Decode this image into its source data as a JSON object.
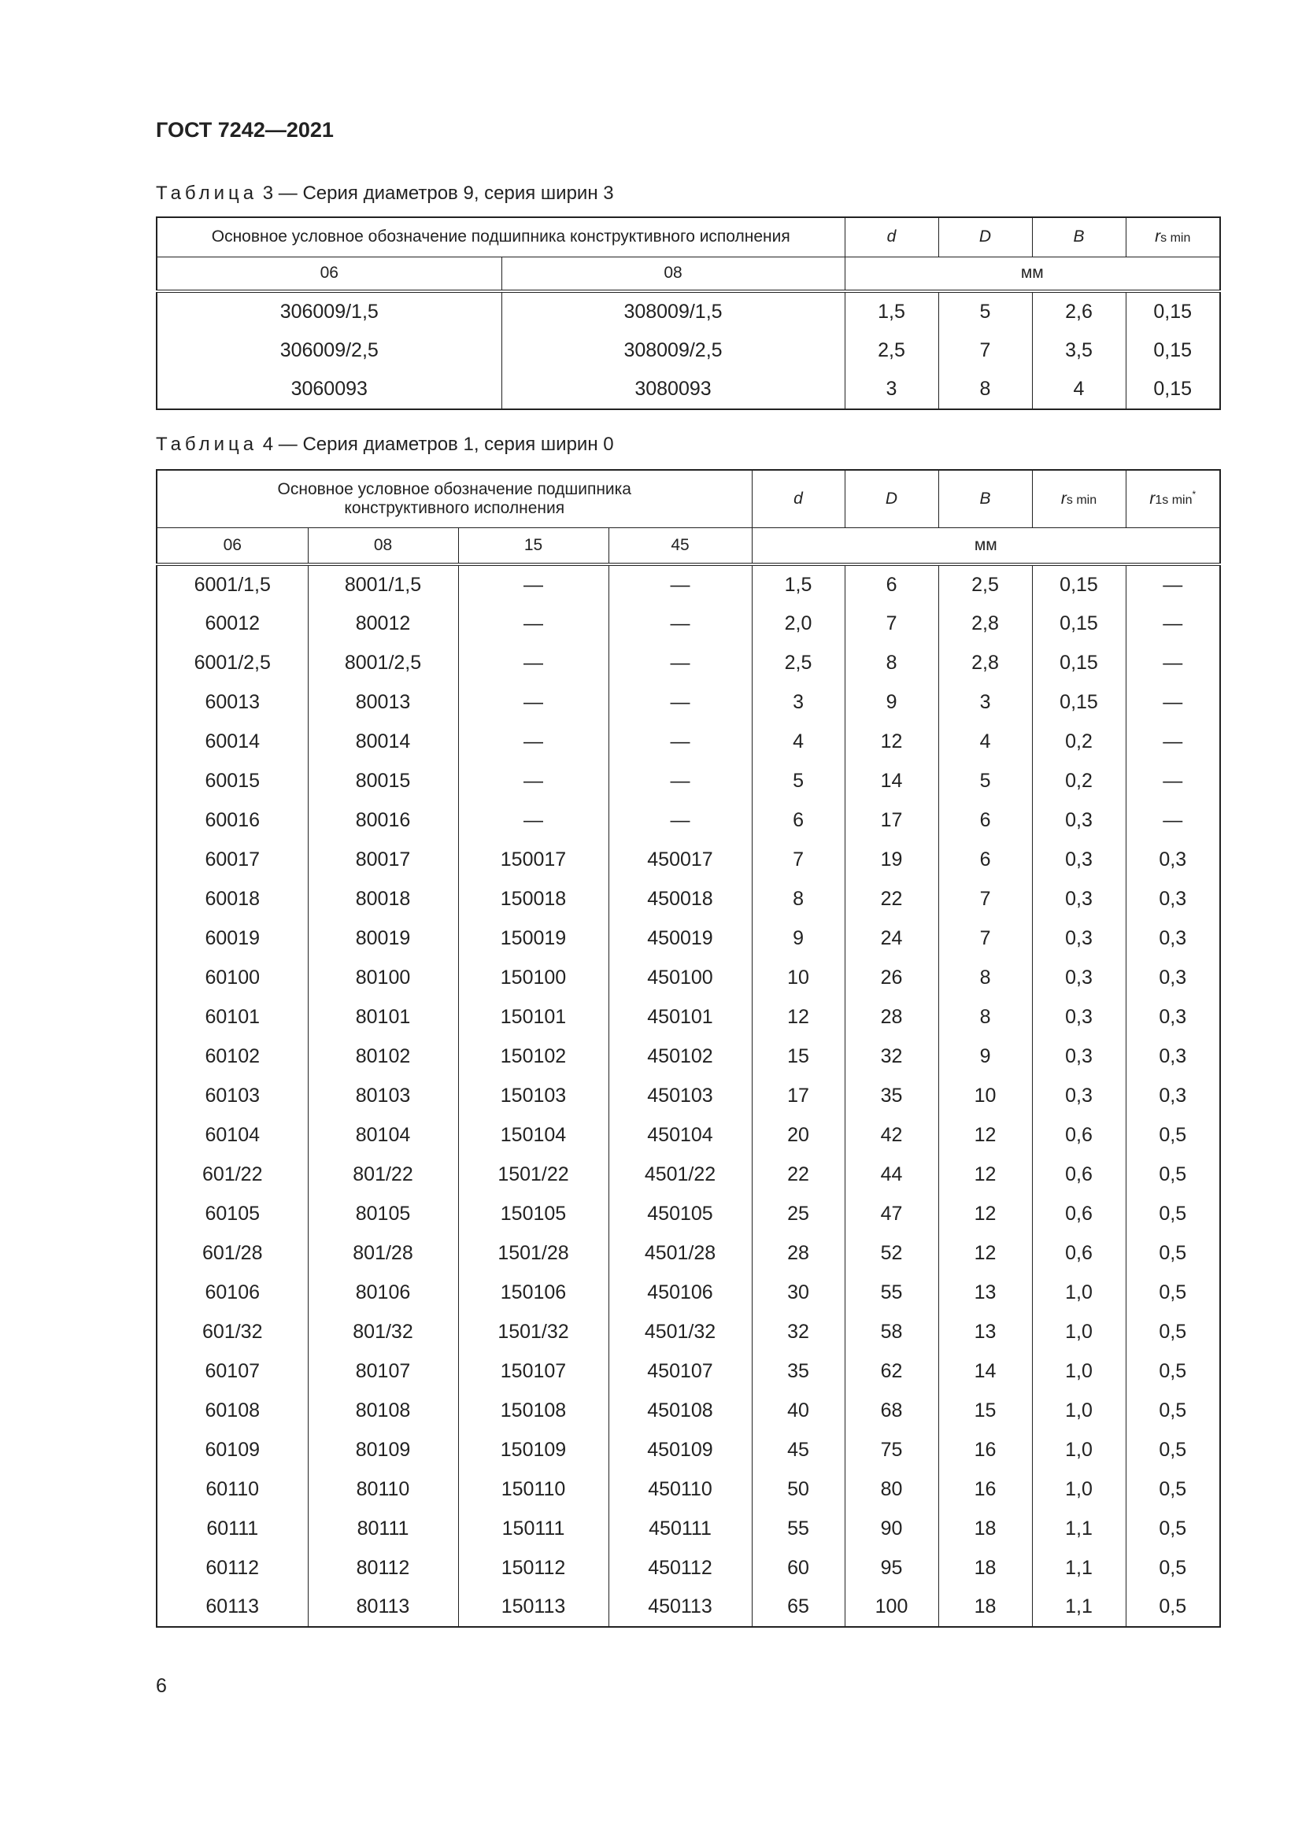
{
  "header": {
    "doc_title": "ГОСТ 7242—2021"
  },
  "table3": {
    "caption_prefix": "Таблица",
    "caption": "3 — Серия диаметров 9, серия ширин 3",
    "group_header": "Основное условное обозначение подшипника конструктивного исполнения",
    "dim_headers": [
      "d",
      "D",
      "B"
    ],
    "r_label": "r",
    "r_sub": "s min",
    "series": [
      "06",
      "08"
    ],
    "unit": "мм",
    "rows": [
      [
        "306009/1,5",
        "308009/1,5",
        "1,5",
        "5",
        "2,6",
        "0,15"
      ],
      [
        "306009/2,5",
        "308009/2,5",
        "2,5",
        "7",
        "3,5",
        "0,15"
      ],
      [
        "3060093",
        "3080093",
        "3",
        "8",
        "4",
        "0,15"
      ]
    ]
  },
  "table4": {
    "caption_prefix": "Таблица",
    "caption": "4 — Серия диаметров 1, серия ширин 0",
    "group_header_1": "Основное условное обозначение подшипника",
    "group_header_2": "конструктивного исполнения",
    "dim_headers": [
      "d",
      "D",
      "B"
    ],
    "r_label": "r",
    "r_sub": "s min",
    "r1_label": "r",
    "r1_sub": "1s min",
    "r1_mark": "*",
    "series": [
      "06",
      "08",
      "15",
      "45"
    ],
    "unit": "мм",
    "rows": [
      [
        "6001/1,5",
        "8001/1,5",
        "—",
        "—",
        "1,5",
        "6",
        "2,5",
        "0,15",
        "—"
      ],
      [
        "60012",
        "80012",
        "—",
        "—",
        "2,0",
        "7",
        "2,8",
        "0,15",
        "—"
      ],
      [
        "6001/2,5",
        "8001/2,5",
        "—",
        "—",
        "2,5",
        "8",
        "2,8",
        "0,15",
        "—"
      ],
      [
        "60013",
        "80013",
        "—",
        "—",
        "3",
        "9",
        "3",
        "0,15",
        "—"
      ],
      [
        "60014",
        "80014",
        "—",
        "—",
        "4",
        "12",
        "4",
        "0,2",
        "—"
      ],
      [
        "60015",
        "80015",
        "—",
        "—",
        "5",
        "14",
        "5",
        "0,2",
        "—"
      ],
      [
        "60016",
        "80016",
        "—",
        "—",
        "6",
        "17",
        "6",
        "0,3",
        "—"
      ],
      [
        "60017",
        "80017",
        "150017",
        "450017",
        "7",
        "19",
        "6",
        "0,3",
        "0,3"
      ],
      [
        "60018",
        "80018",
        "150018",
        "450018",
        "8",
        "22",
        "7",
        "0,3",
        "0,3"
      ],
      [
        "60019",
        "80019",
        "150019",
        "450019",
        "9",
        "24",
        "7",
        "0,3",
        "0,3"
      ],
      [
        "60100",
        "80100",
        "150100",
        "450100",
        "10",
        "26",
        "8",
        "0,3",
        "0,3"
      ],
      [
        "60101",
        "80101",
        "150101",
        "450101",
        "12",
        "28",
        "8",
        "0,3",
        "0,3"
      ],
      [
        "60102",
        "80102",
        "150102",
        "450102",
        "15",
        "32",
        "9",
        "0,3",
        "0,3"
      ],
      [
        "60103",
        "80103",
        "150103",
        "450103",
        "17",
        "35",
        "10",
        "0,3",
        "0,3"
      ],
      [
        "60104",
        "80104",
        "150104",
        "450104",
        "20",
        "42",
        "12",
        "0,6",
        "0,5"
      ],
      [
        "601/22",
        "801/22",
        "1501/22",
        "4501/22",
        "22",
        "44",
        "12",
        "0,6",
        "0,5"
      ],
      [
        "60105",
        "80105",
        "150105",
        "450105",
        "25",
        "47",
        "12",
        "0,6",
        "0,5"
      ],
      [
        "601/28",
        "801/28",
        "1501/28",
        "4501/28",
        "28",
        "52",
        "12",
        "0,6",
        "0,5"
      ],
      [
        "60106",
        "80106",
        "150106",
        "450106",
        "30",
        "55",
        "13",
        "1,0",
        "0,5"
      ],
      [
        "601/32",
        "801/32",
        "1501/32",
        "4501/32",
        "32",
        "58",
        "13",
        "1,0",
        "0,5"
      ],
      [
        "60107",
        "80107",
        "150107",
        "450107",
        "35",
        "62",
        "14",
        "1,0",
        "0,5"
      ],
      [
        "60108",
        "80108",
        "150108",
        "450108",
        "40",
        "68",
        "15",
        "1,0",
        "0,5"
      ],
      [
        "60109",
        "80109",
        "150109",
        "450109",
        "45",
        "75",
        "16",
        "1,0",
        "0,5"
      ],
      [
        "60110",
        "80110",
        "150110",
        "450110",
        "50",
        "80",
        "16",
        "1,0",
        "0,5"
      ],
      [
        "60111",
        "80111",
        "150111",
        "450111",
        "55",
        "90",
        "18",
        "1,1",
        "0,5"
      ],
      [
        "60112",
        "80112",
        "150112",
        "450112",
        "60",
        "95",
        "18",
        "1,1",
        "0,5"
      ],
      [
        "60113",
        "80113",
        "150113",
        "450113",
        "65",
        "100",
        "18",
        "1,1",
        "0,5"
      ]
    ]
  },
  "footer": {
    "page_number": "6"
  }
}
